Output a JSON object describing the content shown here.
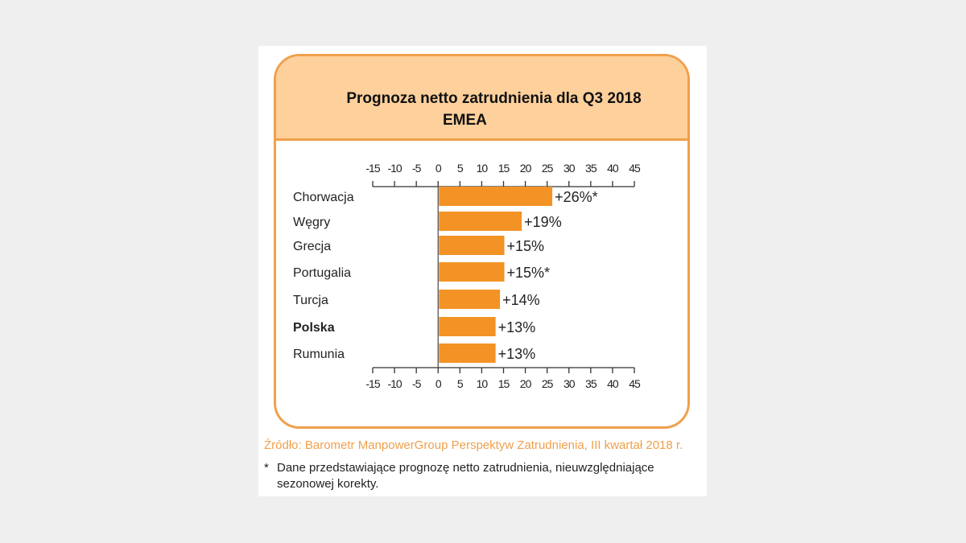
{
  "chart_data": {
    "type": "bar",
    "orientation": "horizontal",
    "title": "Prognoza netto zatrudnienia dla Q3 2018",
    "subtitle": "EMEA",
    "categories": [
      "Chorwacja",
      "Węgry",
      "Grecja",
      "Portugalia",
      "Turcja",
      "Polska",
      "Rumunia"
    ],
    "values": [
      26,
      19,
      15,
      15,
      14,
      13,
      13
    ],
    "data_labels": [
      "+26%*",
      "+19%",
      "+15%",
      "+15%*",
      "+14%",
      "+13%",
      "+13%"
    ],
    "highlighted": "Polska",
    "xlim": [
      -15,
      45
    ],
    "ticks": [
      -15,
      -10,
      -5,
      0,
      5,
      10,
      15,
      20,
      25,
      30,
      35,
      40,
      45
    ],
    "tick_labels": [
      "-15",
      "-10",
      "-5",
      "0",
      "5",
      "10",
      "15",
      "20",
      "25",
      "30",
      "35",
      "40",
      "45"
    ],
    "axis_positions": [
      "top",
      "bottom"
    ],
    "bar_color": "#f39325",
    "grid": false
  },
  "source": "Źródło: Barometr ManpowerGroup Perspektyw Zatrudnienia, III kwartał 2018 r.",
  "footnote": {
    "marker": "*",
    "text": "Dane przedstawiające prognozę netto zatrudnienia, nieuwzględniające sezonowej korekty."
  }
}
